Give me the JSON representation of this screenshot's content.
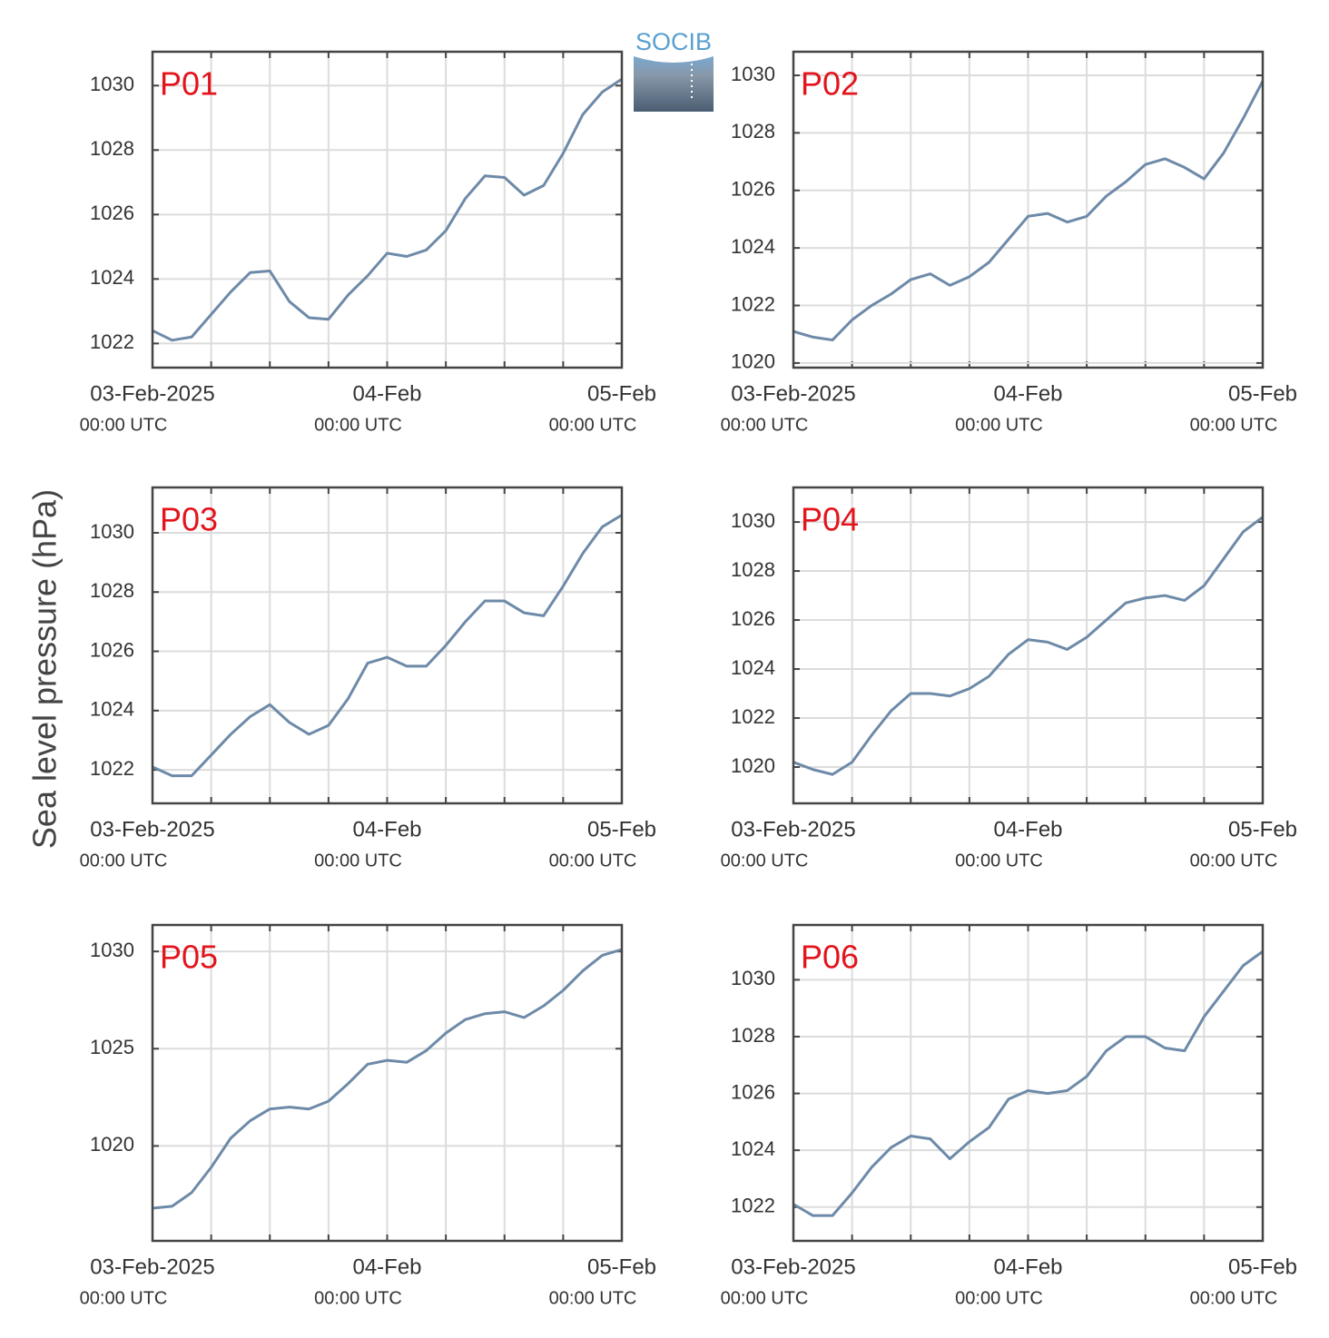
{
  "logo": "SOCIB",
  "ylabel": "Sea level pressure (hPa)",
  "chart_data": [
    {
      "type": "line",
      "title": "P01",
      "color": "#6d8aa8",
      "x": [
        "2025-02-03T00:00",
        "2025-02-03T02:00",
        "2025-02-03T04:00",
        "2025-02-03T06:00",
        "2025-02-03T08:00",
        "2025-02-03T10:00",
        "2025-02-03T12:00",
        "2025-02-03T14:00",
        "2025-02-03T16:00",
        "2025-02-03T18:00",
        "2025-02-03T20:00",
        "2025-02-03T22:00",
        "2025-02-04T00:00",
        "2025-02-04T02:00",
        "2025-02-04T04:00",
        "2025-02-04T06:00",
        "2025-02-04T08:00",
        "2025-02-04T10:00",
        "2025-02-04T12:00",
        "2025-02-04T14:00",
        "2025-02-04T16:00",
        "2025-02-04T18:00",
        "2025-02-04T20:00",
        "2025-02-04T22:00",
        "2025-02-05T00:00"
      ],
      "values": [
        1022.4,
        1022.1,
        1022.2,
        1022.9,
        1023.6,
        1024.2,
        1024.25,
        1023.3,
        1022.8,
        1022.75,
        1023.5,
        1024.1,
        1024.8,
        1024.7,
        1024.9,
        1025.5,
        1026.5,
        1027.2,
        1027.15,
        1026.6,
        1026.9,
        1027.9,
        1029.1,
        1029.8,
        1030.2
      ],
      "xlim": [
        "2025-02-03T00:00",
        "2025-02-05T00:00"
      ],
      "xticks": [
        {
          "value": "2025-02-03T00:00",
          "label": [
            "03-Feb-2025",
            "00:00 UTC"
          ]
        },
        {
          "value": "2025-02-04T00:00",
          "label": [
            "04-Feb",
            "00:00 UTC"
          ]
        },
        {
          "value": "2025-02-05T00:00",
          "label": [
            "05-Feb",
            "00:00 UTC"
          ]
        }
      ],
      "xminorticks": [
        "2025-02-03T00:00",
        "2025-02-03T06:00",
        "2025-02-03T12:00",
        "2025-02-03T18:00",
        "2025-02-04T00:00",
        "2025-02-04T06:00",
        "2025-02-04T12:00",
        "2025-02-04T18:00",
        "2025-02-05T00:00"
      ],
      "ylim": [
        1021.25,
        1031.05
      ],
      "yticks": [
        1022,
        1024,
        1026,
        1028,
        1030
      ],
      "grid": true
    },
    {
      "type": "line",
      "title": "P02",
      "color": "#6d8aa8",
      "x": [
        "2025-02-03T00:00",
        "2025-02-03T02:00",
        "2025-02-03T04:00",
        "2025-02-03T06:00",
        "2025-02-03T08:00",
        "2025-02-03T10:00",
        "2025-02-03T12:00",
        "2025-02-03T14:00",
        "2025-02-03T16:00",
        "2025-02-03T18:00",
        "2025-02-03T20:00",
        "2025-02-03T22:00",
        "2025-02-04T00:00",
        "2025-02-04T02:00",
        "2025-02-04T04:00",
        "2025-02-04T06:00",
        "2025-02-04T08:00",
        "2025-02-04T10:00",
        "2025-02-04T12:00",
        "2025-02-04T14:00",
        "2025-02-04T16:00",
        "2025-02-04T18:00",
        "2025-02-04T20:00",
        "2025-02-04T22:00",
        "2025-02-05T00:00"
      ],
      "values": [
        1021.1,
        1020.9,
        1020.8,
        1021.5,
        1022.0,
        1022.4,
        1022.9,
        1023.1,
        1022.7,
        1023.0,
        1023.5,
        1024.3,
        1025.1,
        1025.2,
        1024.9,
        1025.1,
        1025.8,
        1026.3,
        1026.9,
        1027.1,
        1026.8,
        1026.4,
        1027.3,
        1028.5,
        1029.8
      ],
      "xlim": [
        "2025-02-03T00:00",
        "2025-02-05T00:00"
      ],
      "xticks": [
        {
          "value": "2025-02-03T00:00",
          "label": [
            "03-Feb-2025",
            "00:00 UTC"
          ]
        },
        {
          "value": "2025-02-04T00:00",
          "label": [
            "04-Feb",
            "00:00 UTC"
          ]
        },
        {
          "value": "2025-02-05T00:00",
          "label": [
            "05-Feb",
            "00:00 UTC"
          ]
        }
      ],
      "xminorticks": [
        "2025-02-03T00:00",
        "2025-02-03T06:00",
        "2025-02-03T12:00",
        "2025-02-03T18:00",
        "2025-02-04T00:00",
        "2025-02-04T06:00",
        "2025-02-04T12:00",
        "2025-02-04T18:00",
        "2025-02-05T00:00"
      ],
      "ylim": [
        1019.84,
        1030.82
      ],
      "yticks": [
        1020,
        1022,
        1024,
        1026,
        1028,
        1030
      ],
      "grid": true
    },
    {
      "type": "line",
      "title": "P03",
      "color": "#6d8aa8",
      "x": [
        "2025-02-03T00:00",
        "2025-02-03T02:00",
        "2025-02-03T04:00",
        "2025-02-03T06:00",
        "2025-02-03T08:00",
        "2025-02-03T10:00",
        "2025-02-03T12:00",
        "2025-02-03T14:00",
        "2025-02-03T16:00",
        "2025-02-03T18:00",
        "2025-02-03T20:00",
        "2025-02-03T22:00",
        "2025-02-04T00:00",
        "2025-02-04T02:00",
        "2025-02-04T04:00",
        "2025-02-04T06:00",
        "2025-02-04T08:00",
        "2025-02-04T10:00",
        "2025-02-04T12:00",
        "2025-02-04T14:00",
        "2025-02-04T16:00",
        "2025-02-04T18:00",
        "2025-02-04T20:00",
        "2025-02-04T22:00",
        "2025-02-05T00:00"
      ],
      "values": [
        1022.1,
        1021.8,
        1021.8,
        1022.5,
        1023.2,
        1023.8,
        1024.2,
        1023.6,
        1023.2,
        1023.5,
        1024.4,
        1025.6,
        1025.8,
        1025.5,
        1025.5,
        1026.2,
        1027.0,
        1027.7,
        1027.7,
        1027.3,
        1027.2,
        1028.2,
        1029.3,
        1030.2,
        1030.6
      ],
      "xlim": [
        "2025-02-03T00:00",
        "2025-02-05T00:00"
      ],
      "xticks": [
        {
          "value": "2025-02-03T00:00",
          "label": [
            "03-Feb-2025",
            "00:00 UTC"
          ]
        },
        {
          "value": "2025-02-04T00:00",
          "label": [
            "04-Feb",
            "00:00 UTC"
          ]
        },
        {
          "value": "2025-02-05T00:00",
          "label": [
            "05-Feb",
            "00:00 UTC"
          ]
        }
      ],
      "xminorticks": [
        "2025-02-03T00:00",
        "2025-02-03T06:00",
        "2025-02-03T12:00",
        "2025-02-03T18:00",
        "2025-02-04T00:00",
        "2025-02-04T06:00",
        "2025-02-04T12:00",
        "2025-02-04T18:00",
        "2025-02-05T00:00"
      ],
      "ylim": [
        1020.87,
        1031.53
      ],
      "yticks": [
        1022,
        1024,
        1026,
        1028,
        1030
      ],
      "grid": true
    },
    {
      "type": "line",
      "title": "P04",
      "color": "#6d8aa8",
      "x": [
        "2025-02-03T00:00",
        "2025-02-03T02:00",
        "2025-02-03T04:00",
        "2025-02-03T06:00",
        "2025-02-03T08:00",
        "2025-02-03T10:00",
        "2025-02-03T12:00",
        "2025-02-03T14:00",
        "2025-02-03T16:00",
        "2025-02-03T18:00",
        "2025-02-03T20:00",
        "2025-02-03T22:00",
        "2025-02-04T00:00",
        "2025-02-04T02:00",
        "2025-02-04T04:00",
        "2025-02-04T06:00",
        "2025-02-04T08:00",
        "2025-02-04T10:00",
        "2025-02-04T12:00",
        "2025-02-04T14:00",
        "2025-02-04T16:00",
        "2025-02-04T18:00",
        "2025-02-04T20:00",
        "2025-02-04T22:00",
        "2025-02-05T00:00"
      ],
      "values": [
        1020.2,
        1019.9,
        1019.7,
        1020.2,
        1021.3,
        1022.3,
        1023.0,
        1023.0,
        1022.9,
        1023.2,
        1023.7,
        1024.6,
        1025.2,
        1025.1,
        1024.8,
        1025.3,
        1026.0,
        1026.7,
        1026.9,
        1027.0,
        1026.8,
        1027.4,
        1028.5,
        1029.6,
        1030.2
      ],
      "xlim": [
        "2025-02-03T00:00",
        "2025-02-05T00:00"
      ],
      "xticks": [
        {
          "value": "2025-02-03T00:00",
          "label": [
            "03-Feb-2025",
            "00:00 UTC"
          ]
        },
        {
          "value": "2025-02-04T00:00",
          "label": [
            "04-Feb",
            "00:00 UTC"
          ]
        },
        {
          "value": "2025-02-05T00:00",
          "label": [
            "05-Feb",
            "00:00 UTC"
          ]
        }
      ],
      "xminorticks": [
        "2025-02-03T00:00",
        "2025-02-03T06:00",
        "2025-02-03T12:00",
        "2025-02-03T18:00",
        "2025-02-04T00:00",
        "2025-02-04T06:00",
        "2025-02-04T12:00",
        "2025-02-04T18:00",
        "2025-02-05T00:00"
      ],
      "ylim": [
        1018.52,
        1031.41
      ],
      "yticks": [
        1020,
        1022,
        1024,
        1026,
        1028,
        1030
      ],
      "grid": true
    },
    {
      "type": "line",
      "title": "P05",
      "color": "#6d8aa8",
      "x": [
        "2025-02-03T00:00",
        "2025-02-03T02:00",
        "2025-02-03T04:00",
        "2025-02-03T06:00",
        "2025-02-03T08:00",
        "2025-02-03T10:00",
        "2025-02-03T12:00",
        "2025-02-03T14:00",
        "2025-02-03T16:00",
        "2025-02-03T18:00",
        "2025-02-03T20:00",
        "2025-02-03T22:00",
        "2025-02-04T00:00",
        "2025-02-04T02:00",
        "2025-02-04T04:00",
        "2025-02-04T06:00",
        "2025-02-04T08:00",
        "2025-02-04T10:00",
        "2025-02-04T12:00",
        "2025-02-04T14:00",
        "2025-02-04T16:00",
        "2025-02-04T18:00",
        "2025-02-04T20:00",
        "2025-02-04T22:00",
        "2025-02-05T00:00"
      ],
      "values": [
        1016.8,
        1016.9,
        1017.6,
        1018.9,
        1020.4,
        1021.3,
        1021.9,
        1022.0,
        1021.9,
        1022.3,
        1023.2,
        1024.2,
        1024.4,
        1024.3,
        1024.9,
        1025.8,
        1026.5,
        1026.8,
        1026.9,
        1026.6,
        1027.2,
        1028.0,
        1029.0,
        1029.8,
        1030.1
      ],
      "xlim": [
        "2025-02-03T00:00",
        "2025-02-05T00:00"
      ],
      "xticks": [
        {
          "value": "2025-02-03T00:00",
          "label": [
            "03-Feb-2025",
            "00:00 UTC"
          ]
        },
        {
          "value": "2025-02-04T00:00",
          "label": [
            "04-Feb",
            "00:00 UTC"
          ]
        },
        {
          "value": "2025-02-05T00:00",
          "label": [
            "05-Feb",
            "00:00 UTC"
          ]
        }
      ],
      "xminorticks": [
        "2025-02-03T00:00",
        "2025-02-03T06:00",
        "2025-02-03T12:00",
        "2025-02-03T18:00",
        "2025-02-04T00:00",
        "2025-02-04T06:00",
        "2025-02-04T12:00",
        "2025-02-04T18:00",
        "2025-02-05T00:00"
      ],
      "ylim": [
        1015.12,
        1031.36
      ],
      "yticks": [
        1020,
        1025,
        1030
      ],
      "grid": true
    },
    {
      "type": "line",
      "title": "P06",
      "color": "#6d8aa8",
      "x": [
        "2025-02-03T00:00",
        "2025-02-03T02:00",
        "2025-02-03T04:00",
        "2025-02-03T06:00",
        "2025-02-03T08:00",
        "2025-02-03T10:00",
        "2025-02-03T12:00",
        "2025-02-03T14:00",
        "2025-02-03T16:00",
        "2025-02-03T18:00",
        "2025-02-03T20:00",
        "2025-02-03T22:00",
        "2025-02-04T00:00",
        "2025-02-04T02:00",
        "2025-02-04T04:00",
        "2025-02-04T06:00",
        "2025-02-04T08:00",
        "2025-02-04T10:00",
        "2025-02-04T12:00",
        "2025-02-04T14:00",
        "2025-02-04T16:00",
        "2025-02-04T18:00",
        "2025-02-04T20:00",
        "2025-02-04T22:00",
        "2025-02-05T00:00"
      ],
      "values": [
        1022.1,
        1021.7,
        1021.7,
        1022.5,
        1023.4,
        1024.1,
        1024.5,
        1024.4,
        1023.7,
        1024.3,
        1024.8,
        1025.8,
        1026.1,
        1026.0,
        1026.1,
        1026.6,
        1027.5,
        1028.0,
        1028.0,
        1027.6,
        1027.5,
        1028.7,
        1029.6,
        1030.5,
        1031.0
      ],
      "xlim": [
        "2025-02-03T00:00",
        "2025-02-05T00:00"
      ],
      "xticks": [
        {
          "value": "2025-02-03T00:00",
          "label": [
            "03-Feb-2025",
            "00:00 UTC"
          ]
        },
        {
          "value": "2025-02-04T00:00",
          "label": [
            "04-Feb",
            "00:00 UTC"
          ]
        },
        {
          "value": "2025-02-05T00:00",
          "label": [
            "05-Feb",
            "00:00 UTC"
          ]
        }
      ],
      "xminorticks": [
        "2025-02-03T00:00",
        "2025-02-03T06:00",
        "2025-02-03T12:00",
        "2025-02-03T18:00",
        "2025-02-04T00:00",
        "2025-02-04T06:00",
        "2025-02-04T12:00",
        "2025-02-04T18:00",
        "2025-02-05T00:00"
      ],
      "ylim": [
        1020.81,
        1031.93
      ],
      "yticks": [
        1022,
        1024,
        1026,
        1028,
        1030
      ],
      "grid": true
    }
  ]
}
